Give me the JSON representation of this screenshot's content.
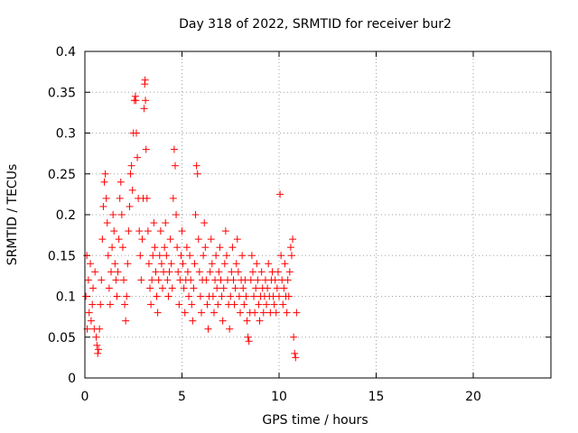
{
  "chart_data": {
    "type": "scatter",
    "title": "Day 318 of 2022, SRMTID for receiver bur2",
    "xlabel": "GPS time / hours",
    "ylabel": "SRMTID / TECUs",
    "xlim": [
      0,
      24
    ],
    "ylim": [
      0,
      0.4
    ],
    "x_ticks": [
      0,
      5,
      10,
      15,
      20
    ],
    "x_tick_labels": [
      "0",
      "5",
      "10",
      "15",
      "20"
    ],
    "y_ticks": [
      0,
      0.05,
      0.1,
      0.15,
      0.2,
      0.25,
      0.3,
      0.35,
      0.4
    ],
    "y_tick_labels": [
      "0",
      "0.05",
      "0.1",
      "0.15",
      "0.2",
      "0.25",
      "0.3",
      "0.35",
      "0.4"
    ],
    "grid": true,
    "marker": "+",
    "color": "#ff0000",
    "series": [
      {
        "name": "bur2",
        "points": [
          [
            0.05,
            0.1
          ],
          [
            0.1,
            0.15
          ],
          [
            0.12,
            0.06
          ],
          [
            0.18,
            0.12
          ],
          [
            0.22,
            0.08
          ],
          [
            0.28,
            0.14
          ],
          [
            0.32,
            0.07
          ],
          [
            0.38,
            0.09
          ],
          [
            0.42,
            0.11
          ],
          [
            0.48,
            0.06
          ],
          [
            0.52,
            0.13
          ],
          [
            0.58,
            0.05
          ],
          [
            0.62,
            0.04
          ],
          [
            0.66,
            0.03
          ],
          [
            0.7,
            0.035
          ],
          [
            0.75,
            0.06
          ],
          [
            0.8,
            0.09
          ],
          [
            0.85,
            0.12
          ],
          [
            0.9,
            0.17
          ],
          [
            0.95,
            0.21
          ],
          [
            1.0,
            0.24
          ],
          [
            1.05,
            0.25
          ],
          [
            1.1,
            0.22
          ],
          [
            1.15,
            0.19
          ],
          [
            1.2,
            0.15
          ],
          [
            1.25,
            0.11
          ],
          [
            1.3,
            0.09
          ],
          [
            1.35,
            0.13
          ],
          [
            1.4,
            0.16
          ],
          [
            1.45,
            0.2
          ],
          [
            1.5,
            0.18
          ],
          [
            1.55,
            0.14
          ],
          [
            1.6,
            0.12
          ],
          [
            1.65,
            0.1
          ],
          [
            1.7,
            0.13
          ],
          [
            1.75,
            0.17
          ],
          [
            1.8,
            0.22
          ],
          [
            1.85,
            0.24
          ],
          [
            1.9,
            0.2
          ],
          [
            1.95,
            0.16
          ],
          [
            2.0,
            0.12
          ],
          [
            2.05,
            0.09
          ],
          [
            2.1,
            0.07
          ],
          [
            2.15,
            0.1
          ],
          [
            2.2,
            0.14
          ],
          [
            2.25,
            0.18
          ],
          [
            2.3,
            0.21
          ],
          [
            2.35,
            0.25
          ],
          [
            2.4,
            0.26
          ],
          [
            2.45,
            0.23
          ],
          [
            2.5,
            0.3
          ],
          [
            2.55,
            0.34
          ],
          [
            2.6,
            0.345
          ],
          [
            2.62,
            0.34
          ],
          [
            2.65,
            0.3
          ],
          [
            2.7,
            0.27
          ],
          [
            2.75,
            0.22
          ],
          [
            2.8,
            0.18
          ],
          [
            2.85,
            0.15
          ],
          [
            2.9,
            0.12
          ],
          [
            2.95,
            0.17
          ],
          [
            3.0,
            0.22
          ],
          [
            3.05,
            0.33
          ],
          [
            3.08,
            0.36
          ],
          [
            3.1,
            0.365
          ],
          [
            3.12,
            0.34
          ],
          [
            3.15,
            0.28
          ],
          [
            3.2,
            0.22
          ],
          [
            3.25,
            0.18
          ],
          [
            3.3,
            0.14
          ],
          [
            3.35,
            0.11
          ],
          [
            3.4,
            0.09
          ],
          [
            3.45,
            0.12
          ],
          [
            3.5,
            0.15
          ],
          [
            3.55,
            0.19
          ],
          [
            3.6,
            0.16
          ],
          [
            3.65,
            0.13
          ],
          [
            3.7,
            0.1
          ],
          [
            3.75,
            0.08
          ],
          [
            3.8,
            0.12
          ],
          [
            3.85,
            0.15
          ],
          [
            3.9,
            0.18
          ],
          [
            3.95,
            0.14
          ],
          [
            4.0,
            0.11
          ],
          [
            4.05,
            0.13
          ],
          [
            4.1,
            0.16
          ],
          [
            4.15,
            0.19
          ],
          [
            4.2,
            0.15
          ],
          [
            4.25,
            0.12
          ],
          [
            4.3,
            0.1
          ],
          [
            4.35,
            0.13
          ],
          [
            4.4,
            0.17
          ],
          [
            4.45,
            0.14
          ],
          [
            4.5,
            0.11
          ],
          [
            4.55,
            0.22
          ],
          [
            4.6,
            0.28
          ],
          [
            4.65,
            0.26
          ],
          [
            4.7,
            0.2
          ],
          [
            4.75,
            0.16
          ],
          [
            4.8,
            0.13
          ],
          [
            4.85,
            0.09
          ],
          [
            4.9,
            0.12
          ],
          [
            4.95,
            0.15
          ],
          [
            5.0,
            0.18
          ],
          [
            5.05,
            0.14
          ],
          [
            5.1,
            0.11
          ],
          [
            5.15,
            0.08
          ],
          [
            5.2,
            0.12
          ],
          [
            5.25,
            0.16
          ],
          [
            5.3,
            0.13
          ],
          [
            5.35,
            0.1
          ],
          [
            5.4,
            0.15
          ],
          [
            5.45,
            0.12
          ],
          [
            5.5,
            0.09
          ],
          [
            5.55,
            0.07
          ],
          [
            5.6,
            0.11
          ],
          [
            5.65,
            0.14
          ],
          [
            5.7,
            0.2
          ],
          [
            5.75,
            0.26
          ],
          [
            5.8,
            0.25
          ],
          [
            5.85,
            0.17
          ],
          [
            5.9,
            0.13
          ],
          [
            5.95,
            0.1
          ],
          [
            6.0,
            0.08
          ],
          [
            6.05,
            0.12
          ],
          [
            6.1,
            0.15
          ],
          [
            6.15,
            0.19
          ],
          [
            6.2,
            0.16
          ],
          [
            6.25,
            0.12
          ],
          [
            6.3,
            0.09
          ],
          [
            6.35,
            0.06
          ],
          [
            6.4,
            0.1
          ],
          [
            6.45,
            0.13
          ],
          [
            6.5,
            0.17
          ],
          [
            6.55,
            0.14
          ],
          [
            6.6,
            0.1
          ],
          [
            6.65,
            0.08
          ],
          [
            6.7,
            0.12
          ],
          [
            6.75,
            0.15
          ],
          [
            6.8,
            0.11
          ],
          [
            6.85,
            0.09
          ],
          [
            6.9,
            0.13
          ],
          [
            6.95,
            0.16
          ],
          [
            7.0,
            0.12
          ],
          [
            7.05,
            0.1
          ],
          [
            7.1,
            0.07
          ],
          [
            7.15,
            0.11
          ],
          [
            7.2,
            0.14
          ],
          [
            7.25,
            0.18
          ],
          [
            7.3,
            0.15
          ],
          [
            7.35,
            0.12
          ],
          [
            7.4,
            0.09
          ],
          [
            7.45,
            0.06
          ],
          [
            7.5,
            0.1
          ],
          [
            7.55,
            0.13
          ],
          [
            7.6,
            0.16
          ],
          [
            7.65,
            0.12
          ],
          [
            7.7,
            0.09
          ],
          [
            7.75,
            0.11
          ],
          [
            7.8,
            0.14
          ],
          [
            7.85,
            0.17
          ],
          [
            7.9,
            0.13
          ],
          [
            7.95,
            0.1
          ],
          [
            8.0,
            0.08
          ],
          [
            8.05,
            0.12
          ],
          [
            8.1,
            0.15
          ],
          [
            8.15,
            0.11
          ],
          [
            8.2,
            0.09
          ],
          [
            8.25,
            0.12
          ],
          [
            8.3,
            0.1
          ],
          [
            8.35,
            0.07
          ],
          [
            8.4,
            0.05
          ],
          [
            8.45,
            0.045
          ],
          [
            8.5,
            0.08
          ],
          [
            8.55,
            0.12
          ],
          [
            8.6,
            0.15
          ],
          [
            8.65,
            0.13
          ],
          [
            8.7,
            0.1
          ],
          [
            8.75,
            0.08
          ],
          [
            8.8,
            0.11
          ],
          [
            8.85,
            0.14
          ],
          [
            8.9,
            0.12
          ],
          [
            8.95,
            0.09
          ],
          [
            9.0,
            0.07
          ],
          [
            9.05,
            0.1
          ],
          [
            9.1,
            0.13
          ],
          [
            9.15,
            0.11
          ],
          [
            9.2,
            0.08
          ],
          [
            9.25,
            0.1
          ],
          [
            9.3,
            0.12
          ],
          [
            9.35,
            0.09
          ],
          [
            9.4,
            0.11
          ],
          [
            9.45,
            0.14
          ],
          [
            9.5,
            0.1
          ],
          [
            9.55,
            0.08
          ],
          [
            9.6,
            0.12
          ],
          [
            9.65,
            0.13
          ],
          [
            9.7,
            0.1
          ],
          [
            9.75,
            0.09
          ],
          [
            9.8,
            0.12
          ],
          [
            9.85,
            0.08
          ],
          [
            9.9,
            0.11
          ],
          [
            9.95,
            0.13
          ],
          [
            10.0,
            0.1
          ],
          [
            10.05,
            0.225
          ],
          [
            10.1,
            0.15
          ],
          [
            10.15,
            0.12
          ],
          [
            10.2,
            0.09
          ],
          [
            10.25,
            0.11
          ],
          [
            10.3,
            0.14
          ],
          [
            10.35,
            0.1
          ],
          [
            10.4,
            0.08
          ],
          [
            10.45,
            0.12
          ],
          [
            10.5,
            0.1
          ],
          [
            10.55,
            0.13
          ],
          [
            10.6,
            0.16
          ],
          [
            10.65,
            0.15
          ],
          [
            10.7,
            0.17
          ],
          [
            10.75,
            0.05
          ],
          [
            10.8,
            0.03
          ],
          [
            10.85,
            0.025
          ],
          [
            10.9,
            0.08
          ]
        ]
      }
    ]
  }
}
